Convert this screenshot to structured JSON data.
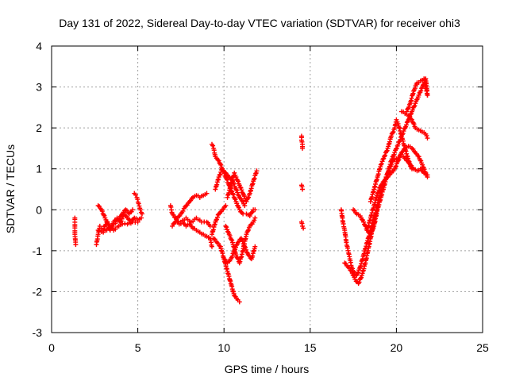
{
  "chart_data": {
    "type": "scatter",
    "title": "Day 131 of 2022, Sidereal Day-to-day VTEC variation (SDTVAR) for receiver ohi3",
    "xlabel": "GPS time / hours",
    "ylabel": "SDTVAR / TECUs",
    "xlim": [
      0,
      25
    ],
    "ylim": [
      -3,
      4
    ],
    "xticks": [
      0,
      5,
      10,
      15,
      20,
      25
    ],
    "yticks": [
      -3,
      -2,
      -1,
      0,
      1,
      2,
      3,
      4
    ],
    "grid": true,
    "marker": "+",
    "color": "#ff0000",
    "segments": [
      [
        [
          1.35,
          -0.2
        ],
        [
          1.35,
          -0.4
        ],
        [
          1.35,
          -0.6
        ],
        [
          1.4,
          -0.85
        ]
      ],
      [
        [
          2.6,
          -0.85
        ],
        [
          2.7,
          -0.6
        ],
        [
          2.8,
          -0.4
        ],
        [
          2.9,
          -0.45
        ],
        [
          3.0,
          -0.5
        ],
        [
          3.2,
          -0.3
        ],
        [
          3.4,
          -0.5
        ],
        [
          3.6,
          -0.3
        ],
        [
          3.8,
          -0.2
        ],
        [
          4.0,
          -0.3
        ],
        [
          4.2,
          -0.1
        ],
        [
          4.4,
          -0.2
        ],
        [
          4.6,
          -0.3
        ],
        [
          4.8,
          -0.2
        ],
        [
          5.0,
          -0.25
        ],
        [
          5.2,
          -0.2
        ]
      ],
      [
        [
          2.7,
          0.1
        ],
        [
          2.9,
          0.0
        ],
        [
          3.1,
          -0.2
        ],
        [
          3.3,
          -0.35
        ],
        [
          3.6,
          -0.5
        ],
        [
          3.9,
          -0.4
        ],
        [
          4.1,
          -0.35
        ],
        [
          4.4,
          -0.35
        ],
        [
          4.7,
          -0.3
        ],
        [
          5.0,
          -0.3
        ]
      ],
      [
        [
          2.7,
          -0.5
        ],
        [
          3.0,
          -0.55
        ],
        [
          3.3,
          -0.45
        ],
        [
          3.6,
          -0.35
        ],
        [
          3.9,
          -0.25
        ],
        [
          4.1,
          -0.1
        ],
        [
          4.3,
          0.0
        ],
        [
          4.5,
          -0.1
        ],
        [
          4.7,
          0.0
        ]
      ],
      [
        [
          4.8,
          0.4
        ],
        [
          4.95,
          0.3
        ],
        [
          5.05,
          0.15
        ],
        [
          5.15,
          0.0
        ],
        [
          5.25,
          -0.1
        ]
      ],
      [
        [
          6.9,
          0.1
        ],
        [
          7.0,
          -0.1
        ],
        [
          7.2,
          -0.2
        ],
        [
          7.4,
          -0.35
        ],
        [
          7.6,
          -0.3
        ],
        [
          7.8,
          -0.4
        ],
        [
          8.0,
          -0.35
        ],
        [
          8.2,
          -0.45
        ],
        [
          8.4,
          -0.5
        ],
        [
          8.6,
          -0.55
        ],
        [
          8.8,
          -0.6
        ],
        [
          9.0,
          -0.65
        ],
        [
          9.2,
          -0.7
        ],
        [
          9.3,
          -0.9
        ]
      ],
      [
        [
          7.0,
          -0.4
        ],
        [
          7.3,
          -0.2
        ],
        [
          7.5,
          -0.1
        ],
        [
          7.8,
          0.1
        ],
        [
          8.0,
          0.2
        ],
        [
          8.2,
          0.3
        ],
        [
          8.4,
          0.35
        ],
        [
          8.6,
          0.3
        ],
        [
          8.8,
          0.35
        ],
        [
          9.0,
          0.4
        ]
      ],
      [
        [
          7.2,
          -0.3
        ],
        [
          7.5,
          -0.3
        ],
        [
          7.8,
          -0.2
        ],
        [
          8.1,
          -0.3
        ],
        [
          8.4,
          -0.2
        ],
        [
          8.7,
          -0.3
        ],
        [
          9.0,
          -0.3
        ],
        [
          9.2,
          -0.4
        ]
      ],
      [
        [
          9.3,
          -0.6
        ],
        [
          9.5,
          -0.3
        ],
        [
          9.7,
          -0.1
        ],
        [
          9.9,
          0.0
        ],
        [
          10.1,
          0.1
        ]
      ],
      [
        [
          9.3,
          1.6
        ],
        [
          9.4,
          1.5
        ],
        [
          9.5,
          1.3
        ],
        [
          9.7,
          1.2
        ],
        [
          9.9,
          1.0
        ],
        [
          10.1,
          0.8
        ],
        [
          10.3,
          0.6
        ],
        [
          10.5,
          0.4
        ],
        [
          10.7,
          0.2
        ],
        [
          10.9,
          0.0
        ],
        [
          11.1,
          -0.1
        ],
        [
          11.3,
          -0.1
        ],
        [
          11.5,
          -0.15
        ],
        [
          11.7,
          0.0
        ],
        [
          11.8,
          0.0
        ]
      ],
      [
        [
          9.4,
          -0.7
        ],
        [
          9.6,
          -0.8
        ],
        [
          9.8,
          -0.9
        ],
        [
          10.0,
          -1.2
        ],
        [
          10.2,
          -1.5
        ],
        [
          10.4,
          -1.8
        ],
        [
          10.6,
          -2.1
        ],
        [
          10.8,
          -2.2
        ],
        [
          10.9,
          -2.25
        ]
      ],
      [
        [
          9.5,
          0.5
        ],
        [
          9.7,
          0.8
        ],
        [
          9.9,
          1.0
        ],
        [
          10.1,
          0.9
        ],
        [
          10.3,
          0.8
        ],
        [
          10.5,
          0.7
        ],
        [
          10.7,
          0.5
        ],
        [
          10.9,
          0.3
        ],
        [
          11.1,
          0.2
        ],
        [
          11.2,
          0.1
        ]
      ],
      [
        [
          10.0,
          -1.2
        ],
        [
          10.2,
          -1.3
        ],
        [
          10.4,
          -1.2
        ],
        [
          10.6,
          -1.0
        ],
        [
          10.8,
          -0.8
        ],
        [
          11.0,
          -0.7
        ],
        [
          11.2,
          -0.9
        ],
        [
          11.4,
          -1.1
        ],
        [
          11.6,
          -1.2
        ],
        [
          11.8,
          -0.9
        ]
      ],
      [
        [
          10.1,
          -0.4
        ],
        [
          10.3,
          -0.6
        ],
        [
          10.5,
          -0.8
        ],
        [
          10.7,
          -1.1
        ],
        [
          10.9,
          -1.3
        ],
        [
          11.1,
          -1.0
        ],
        [
          11.3,
          -0.6
        ],
        [
          11.5,
          -0.4
        ],
        [
          11.7,
          -0.3
        ],
        [
          11.8,
          -0.2
        ]
      ],
      [
        [
          10.2,
          0.3
        ],
        [
          10.4,
          0.6
        ],
        [
          10.6,
          0.9
        ],
        [
          10.7,
          0.8
        ],
        [
          10.9,
          0.6
        ],
        [
          11.1,
          0.4
        ],
        [
          11.3,
          0.2
        ],
        [
          11.5,
          0.4
        ],
        [
          11.7,
          0.7
        ],
        [
          11.9,
          0.95
        ]
      ],
      [
        [
          14.5,
          1.8
        ],
        [
          14.5,
          1.7
        ],
        [
          14.55,
          1.6
        ],
        [
          14.55,
          1.5
        ]
      ],
      [
        [
          14.5,
          0.6
        ],
        [
          14.55,
          0.5
        ]
      ],
      [
        [
          14.5,
          -0.3
        ],
        [
          14.55,
          -0.4
        ],
        [
          14.6,
          -0.45
        ]
      ],
      [
        [
          16.8,
          0.0
        ],
        [
          16.9,
          -0.3
        ],
        [
          17.0,
          -0.5
        ],
        [
          17.1,
          -0.8
        ],
        [
          17.2,
          -1.0
        ],
        [
          17.3,
          -1.2
        ],
        [
          17.4,
          -1.4
        ],
        [
          17.5,
          -1.5
        ],
        [
          17.7,
          -1.6
        ],
        [
          17.9,
          -1.4
        ],
        [
          18.1,
          -1.1
        ],
        [
          18.3,
          -0.8
        ],
        [
          18.5,
          -0.5
        ],
        [
          18.7,
          -0.2
        ],
        [
          18.9,
          0.0
        ]
      ],
      [
        [
          17.0,
          -1.3
        ],
        [
          17.2,
          -1.4
        ],
        [
          17.4,
          -1.5
        ],
        [
          17.6,
          -1.7
        ],
        [
          17.8,
          -1.8
        ],
        [
          18.0,
          -1.6
        ],
        [
          18.2,
          -1.3
        ],
        [
          18.4,
          -0.9
        ],
        [
          18.6,
          -0.5
        ],
        [
          18.8,
          -0.1
        ],
        [
          19.0,
          0.3
        ],
        [
          19.2,
          0.6
        ],
        [
          19.4,
          0.8
        ],
        [
          19.6,
          1.0
        ],
        [
          19.8,
          1.2
        ],
        [
          20.0,
          1.25
        ],
        [
          20.2,
          1.3
        ],
        [
          20.4,
          1.3
        ],
        [
          20.6,
          1.2
        ],
        [
          20.8,
          1.1
        ],
        [
          21.0,
          1.0
        ],
        [
          21.2,
          0.95
        ],
        [
          21.4,
          1.0
        ],
        [
          21.6,
          0.9
        ],
        [
          21.8,
          0.85
        ]
      ],
      [
        [
          17.5,
          0.0
        ],
        [
          17.7,
          -0.1
        ],
        [
          17.9,
          -0.15
        ],
        [
          18.1,
          -0.3
        ],
        [
          18.3,
          -0.5
        ],
        [
          18.5,
          -0.6
        ],
        [
          18.7,
          -0.4
        ],
        [
          18.9,
          0.0
        ],
        [
          19.1,
          0.3
        ],
        [
          19.3,
          0.6
        ],
        [
          19.5,
          0.9
        ],
        [
          19.7,
          1.2
        ],
        [
          19.9,
          1.4
        ],
        [
          20.1,
          1.6
        ],
        [
          20.3,
          1.8
        ],
        [
          20.5,
          2.0
        ],
        [
          20.7,
          2.2
        ],
        [
          20.9,
          2.4
        ],
        [
          21.1,
          2.6
        ],
        [
          21.3,
          2.8
        ],
        [
          21.5,
          3.0
        ],
        [
          21.7,
          3.2
        ],
        [
          21.8,
          2.8
        ]
      ],
      [
        [
          18.5,
          0.2
        ],
        [
          18.7,
          0.5
        ],
        [
          18.9,
          0.8
        ],
        [
          19.1,
          1.1
        ],
        [
          19.3,
          1.3
        ],
        [
          19.5,
          1.5
        ],
        [
          19.7,
          1.8
        ],
        [
          19.9,
          2.0
        ],
        [
          20.0,
          2.2
        ],
        [
          20.1,
          2.1
        ],
        [
          20.3,
          1.8
        ],
        [
          20.5,
          1.5
        ],
        [
          20.7,
          1.2
        ],
        [
          20.9,
          1.0
        ]
      ],
      [
        [
          18.3,
          -0.5
        ],
        [
          18.5,
          -0.2
        ],
        [
          18.7,
          0.1
        ],
        [
          18.9,
          0.4
        ],
        [
          19.1,
          0.6
        ],
        [
          19.3,
          0.7
        ],
        [
          19.5,
          0.8
        ],
        [
          19.7,
          0.9
        ],
        [
          19.9,
          1.0
        ],
        [
          20.1,
          1.2
        ],
        [
          20.3,
          1.4
        ],
        [
          20.5,
          1.5
        ],
        [
          20.7,
          1.55
        ],
        [
          20.9,
          1.5
        ],
        [
          21.1,
          1.4
        ],
        [
          21.3,
          1.3
        ],
        [
          21.5,
          1.1
        ],
        [
          21.7,
          0.9
        ],
        [
          21.8,
          0.8
        ]
      ],
      [
        [
          20.6,
          2.4
        ],
        [
          20.8,
          2.6
        ],
        [
          21.0,
          2.9
        ],
        [
          21.2,
          3.1
        ],
        [
          21.4,
          3.15
        ],
        [
          21.6,
          3.2
        ],
        [
          21.7,
          3.0
        ],
        [
          21.8,
          2.8
        ]
      ],
      [
        [
          20.3,
          2.4
        ],
        [
          20.5,
          2.35
        ],
        [
          20.7,
          2.3
        ],
        [
          20.9,
          2.2
        ],
        [
          21.1,
          2.0
        ],
        [
          21.3,
          1.95
        ],
        [
          21.5,
          1.9
        ],
        [
          21.7,
          1.85
        ],
        [
          21.8,
          1.75
        ]
      ]
    ]
  }
}
